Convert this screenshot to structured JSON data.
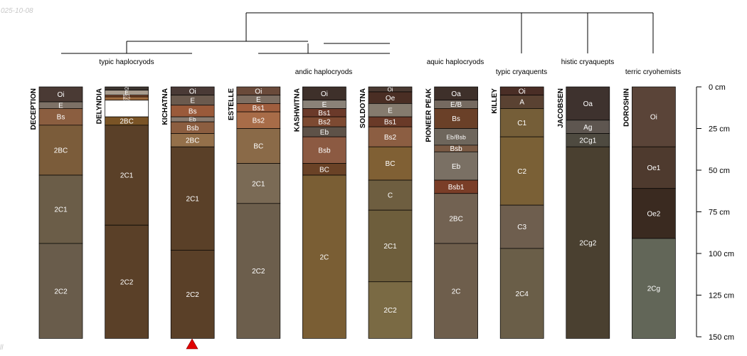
{
  "meta": {
    "date_stamp": "025-10-08",
    "corner_mark": "ll"
  },
  "axis": {
    "max_depth": 150,
    "ticks": [
      {
        "depth": 0,
        "label": "0 cm"
      },
      {
        "depth": 25,
        "label": "25 cm"
      },
      {
        "depth": 50,
        "label": "50 cm"
      },
      {
        "depth": 75,
        "label": "75 cm"
      },
      {
        "depth": 100,
        "label": "100 cm"
      },
      {
        "depth": 125,
        "label": "125 cm"
      },
      {
        "depth": 150,
        "label": "150 cm"
      }
    ]
  },
  "groups": [
    {
      "label": "typic haplocryods",
      "from": 0,
      "to": 2
    },
    {
      "label": "andic haplocryods",
      "from": 3,
      "to": 5
    },
    {
      "label": "aquic haplocryods",
      "from": 6,
      "to": 6
    },
    {
      "label": "typic cryaquents",
      "from": 7,
      "to": 7
    },
    {
      "label": "histic cryaquepts",
      "from": 8,
      "to": 8
    },
    {
      "label": "terric cryohemists",
      "from": 9,
      "to": 9
    }
  ],
  "profiles": [
    {
      "name": "DECEPTION",
      "horizons": [
        {
          "name": "Oi",
          "top": 0,
          "bottom": 9,
          "color": "#4a3a34"
        },
        {
          "name": "E",
          "top": 9,
          "bottom": 13,
          "color": "#7d7166"
        },
        {
          "name": "Bs",
          "top": 13,
          "bottom": 23,
          "color": "#8b5e40"
        },
        {
          "name": "2BC",
          "top": 23,
          "bottom": 53,
          "color": "#7b5c3a"
        },
        {
          "name": "2C1",
          "top": 53,
          "bottom": 94,
          "color": "#6b5d48"
        },
        {
          "name": "2C2",
          "top": 94,
          "bottom": 151,
          "color": "#695c4b"
        }
      ]
    },
    {
      "name": "DELYNDIA",
      "horizons": [
        {
          "name": "Oi",
          "top": 0,
          "bottom": 2,
          "color": "#3d3530"
        },
        {
          "name": "E",
          "top": 2,
          "bottom": 5,
          "color": "#a89c8e"
        },
        {
          "name": "Bs1",
          "top": 5,
          "bottom": 6,
          "color": "#8a4a2a"
        },
        {
          "name": "Bs2",
          "top": 6,
          "bottom": 8,
          "color": "#9c6a3e"
        },
        {
          "name": "",
          "top": 8,
          "bottom": 18,
          "color": "#ffffff"
        },
        {
          "name": "2BC",
          "top": 18,
          "bottom": 23,
          "color": "#7a5426"
        },
        {
          "name": "2C1",
          "top": 23,
          "bottom": 83,
          "color": "#5a4028"
        },
        {
          "name": "2C2",
          "top": 83,
          "bottom": 151,
          "color": "#5a4028"
        }
      ]
    },
    {
      "name": "KICHATNA",
      "horizons": [
        {
          "name": "Oi",
          "top": 0,
          "bottom": 5,
          "color": "#4a3a36"
        },
        {
          "name": "E",
          "top": 5,
          "bottom": 11,
          "color": "#6b5a4e"
        },
        {
          "name": "Bs",
          "top": 11,
          "bottom": 18,
          "color": "#9a5a3a"
        },
        {
          "name": "Eb",
          "top": 18,
          "bottom": 21,
          "color": "#8a7c70"
        },
        {
          "name": "Bsb",
          "top": 21,
          "bottom": 28,
          "color": "#8c5e40"
        },
        {
          "name": "2BC",
          "top": 28,
          "bottom": 36,
          "color": "#94704a"
        },
        {
          "name": "2C1",
          "top": 36,
          "bottom": 98,
          "color": "#5a4028"
        },
        {
          "name": "2C2",
          "top": 98,
          "bottom": 151,
          "color": "#5a4028"
        }
      ]
    },
    {
      "name": "ESTELLE",
      "horizons": [
        {
          "name": "Oi",
          "top": 0,
          "bottom": 5,
          "color": "#6a4a3a"
        },
        {
          "name": "E",
          "top": 5,
          "bottom": 10,
          "color": "#7d6e62"
        },
        {
          "name": "Bs1",
          "top": 10,
          "bottom": 15,
          "color": "#a05e3e"
        },
        {
          "name": "Bs2",
          "top": 15,
          "bottom": 25,
          "color": "#a86c48"
        },
        {
          "name": "BC",
          "top": 25,
          "bottom": 46,
          "color": "#8a6a48"
        },
        {
          "name": "2C1",
          "top": 46,
          "bottom": 70,
          "color": "#7a6a55"
        },
        {
          "name": "2C2",
          "top": 70,
          "bottom": 151,
          "color": "#6c5e4c"
        }
      ]
    },
    {
      "name": "KASHWITNA",
      "horizons": [
        {
          "name": "Oi",
          "top": 0,
          "bottom": 8,
          "color": "#3e302a"
        },
        {
          "name": "E",
          "top": 8,
          "bottom": 13,
          "color": "#8a8278"
        },
        {
          "name": "Bs1",
          "top": 13,
          "bottom": 18,
          "color": "#6b3a2a"
        },
        {
          "name": "Bs2",
          "top": 18,
          "bottom": 24,
          "color": "#7d4a32"
        },
        {
          "name": "Eb",
          "top": 24,
          "bottom": 30,
          "color": "#5e5248"
        },
        {
          "name": "Bsb",
          "top": 30,
          "bottom": 46,
          "color": "#8c5a42"
        },
        {
          "name": "BC",
          "top": 46,
          "bottom": 53,
          "color": "#6a4226"
        },
        {
          "name": "2C",
          "top": 53,
          "bottom": 151,
          "color": "#7a5e34"
        }
      ]
    },
    {
      "name": "SOLDOTNA",
      "horizons": [
        {
          "name": "Oi",
          "top": 0,
          "bottom": 3,
          "color": "#4a3a32"
        },
        {
          "name": "Oe",
          "top": 3,
          "bottom": 10,
          "color": "#4a2e24"
        },
        {
          "name": "E",
          "top": 10,
          "bottom": 18,
          "color": "#857b6e"
        },
        {
          "name": "Bs1",
          "top": 18,
          "bottom": 24,
          "color": "#6a3a28"
        },
        {
          "name": "Bs2",
          "top": 24,
          "bottom": 36,
          "color": "#8c5e42"
        },
        {
          "name": "BC",
          "top": 36,
          "bottom": 56,
          "color": "#806034"
        },
        {
          "name": "C",
          "top": 56,
          "bottom": 74,
          "color": "#6e5e40"
        },
        {
          "name": "2C1",
          "top": 74,
          "bottom": 117,
          "color": "#6e5e3c"
        },
        {
          "name": "2C2",
          "top": 117,
          "bottom": 151,
          "color": "#7a6a44"
        }
      ]
    },
    {
      "name": "PIONEER PEAK",
      "horizons": [
        {
          "name": "Oa",
          "top": 0,
          "bottom": 8,
          "color": "#3e302a"
        },
        {
          "name": "E/B",
          "top": 8,
          "bottom": 13,
          "color": "#756a60"
        },
        {
          "name": "Bs",
          "top": 13,
          "bottom": 25,
          "color": "#6a4028"
        },
        {
          "name": "Eb/Bsb",
          "top": 25,
          "bottom": 35,
          "color": "#6e665c"
        },
        {
          "name": "Bsb",
          "top": 35,
          "bottom": 39,
          "color": "#7a5a44"
        },
        {
          "name": "Eb",
          "top": 39,
          "bottom": 56,
          "color": "#7a7064"
        },
        {
          "name": "Bsb1",
          "top": 56,
          "bottom": 64,
          "color": "#7a3e28"
        },
        {
          "name": "2BC",
          "top": 64,
          "bottom": 94,
          "color": "#726252"
        },
        {
          "name": "2C",
          "top": 94,
          "bottom": 151,
          "color": "#6e5e4c"
        }
      ]
    },
    {
      "name": "KILLEY",
      "horizons": [
        {
          "name": "Oi",
          "top": 0,
          "bottom": 5,
          "color": "#4a2e26"
        },
        {
          "name": "A",
          "top": 5,
          "bottom": 13,
          "color": "#5a4232"
        },
        {
          "name": "C1",
          "top": 13,
          "bottom": 30,
          "color": "#755e38"
        },
        {
          "name": "C2",
          "top": 30,
          "bottom": 71,
          "color": "#7a6036"
        },
        {
          "name": "C3",
          "top": 71,
          "bottom": 97,
          "color": "#6e5e4e"
        },
        {
          "name": "2C4",
          "top": 97,
          "bottom": 151,
          "color": "#6a5e48"
        }
      ]
    },
    {
      "name": "JACOBSEN",
      "horizons": [
        {
          "name": "Oa",
          "top": 0,
          "bottom": 20,
          "color": "#3e322e"
        },
        {
          "name": "Ag",
          "top": 20,
          "bottom": 28,
          "color": "#5e5650"
        },
        {
          "name": "2Cg1",
          "top": 28,
          "bottom": 36,
          "color": "#4e4a40"
        },
        {
          "name": "2Cg2",
          "top": 36,
          "bottom": 151,
          "color": "#4a4030"
        }
      ]
    },
    {
      "name": "DOROSHIN",
      "horizons": [
        {
          "name": "Oi",
          "top": 0,
          "bottom": 36,
          "color": "#5a4438"
        },
        {
          "name": "Oe1",
          "top": 36,
          "bottom": 61,
          "color": "#4e3a2e"
        },
        {
          "name": "Oe2",
          "top": 61,
          "bottom": 91,
          "color": "#3a2a20"
        },
        {
          "name": "2Cg",
          "top": 91,
          "bottom": 151,
          "color": "#626658"
        }
      ]
    }
  ]
}
